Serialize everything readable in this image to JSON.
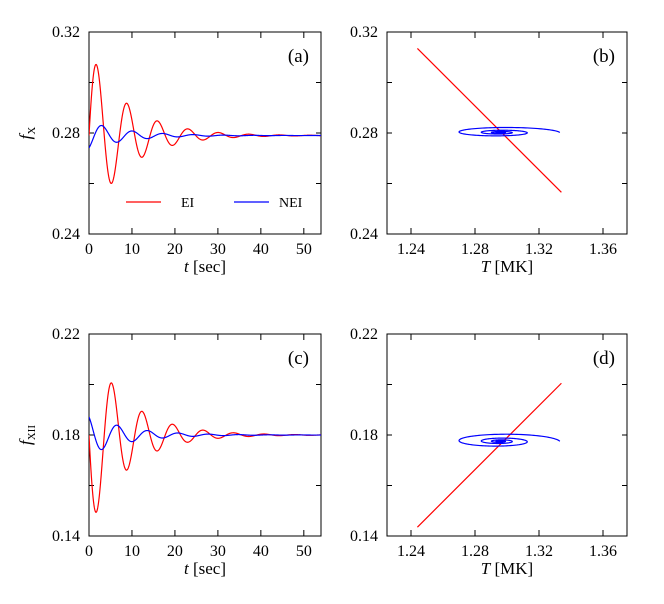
{
  "chart_data": [
    {
      "id": "a",
      "type": "line",
      "panel_label": "(a)",
      "ylabel_main": "f",
      "ylabel_sub": "X",
      "xlabel_italic": "t",
      "xlabel_rest": " [sec]",
      "xlim": [
        0,
        54
      ],
      "ylim": [
        0.24,
        0.32
      ],
      "xticks": [
        0,
        10,
        20,
        30,
        40,
        50
      ],
      "xticklabels": [
        "0",
        "10",
        "20",
        "30",
        "40",
        "50"
      ],
      "yticks": [
        0.24,
        0.28,
        0.32
      ],
      "yticklabels": [
        "0.24",
        "0.28",
        "0.32"
      ],
      "legend": {
        "location": "lower-center",
        "entries": [
          "EI",
          "NEI"
        ]
      },
      "series": [
        {
          "name": "EI",
          "color": "#ff0000",
          "kind": "time",
          "y0": 0.279,
          "amp": 0.034,
          "period": 7.1,
          "tau": 9.0,
          "phase": 0.0
        },
        {
          "name": "NEI",
          "color": "#0000ff",
          "kind": "time",
          "y0": 0.279,
          "amp": 0.0055,
          "period": 7.1,
          "tau": 9.0,
          "phase": -1.1
        }
      ]
    },
    {
      "id": "b",
      "type": "line",
      "panel_label": "(b)",
      "xlabel_italic": "T",
      "xlabel_rest": " [MK]",
      "xlim": [
        1.225,
        1.375
      ],
      "ylim": [
        0.24,
        0.32
      ],
      "xticks": [
        1.24,
        1.28,
        1.32,
        1.36
      ],
      "xticklabels": [
        "1.24",
        "1.28",
        "1.32",
        "1.36"
      ],
      "yticks": [
        0.24,
        0.28,
        0.32
      ],
      "yticklabels": [
        "0.24",
        "0.28",
        "0.32"
      ],
      "series": [
        {
          "name": "EI",
          "color": "#ff0000",
          "kind": "line",
          "x": [
            1.244,
            1.334
          ],
          "y": [
            0.3135,
            0.2565
          ]
        },
        {
          "name": "NEI",
          "color": "#0000ff",
          "kind": "spiral",
          "cx": 1.2955,
          "cy": 0.2802,
          "rx": 0.0375,
          "ry": 0.0024,
          "tau": 9.0,
          "period": 7.1
        }
      ]
    },
    {
      "id": "c",
      "type": "line",
      "panel_label": "(c)",
      "ylabel_main": "f",
      "ylabel_sub": "XII",
      "xlabel_italic": "t",
      "xlabel_rest": " [sec]",
      "xlim": [
        0,
        54
      ],
      "ylim": [
        0.14,
        0.22
      ],
      "xticks": [
        0,
        10,
        20,
        30,
        40,
        50
      ],
      "xticklabels": [
        "0",
        "10",
        "20",
        "30",
        "40",
        "50"
      ],
      "yticks": [
        0.14,
        0.18,
        0.22
      ],
      "yticklabels": [
        "0.14",
        "0.18",
        "0.22"
      ],
      "series": [
        {
          "name": "EI",
          "color": "#ff0000",
          "kind": "time",
          "y0": 0.18,
          "amp": -0.037,
          "period": 7.1,
          "tau": 9.0,
          "phase": 0.0
        },
        {
          "name": "NEI",
          "color": "#0000ff",
          "kind": "time",
          "y0": 0.18,
          "amp": -0.008,
          "period": 7.1,
          "tau": 9.0,
          "phase": -1.1
        }
      ]
    },
    {
      "id": "d",
      "type": "line",
      "panel_label": "(d)",
      "xlabel_italic": "T",
      "xlabel_rest": " [MK]",
      "xlim": [
        1.225,
        1.375
      ],
      "ylim": [
        0.14,
        0.22
      ],
      "xticks": [
        1.24,
        1.28,
        1.32,
        1.36
      ],
      "xticklabels": [
        "1.24",
        "1.28",
        "1.32",
        "1.36"
      ],
      "yticks": [
        0.14,
        0.18,
        0.22
      ],
      "yticklabels": [
        "0.14",
        "0.18",
        "0.22"
      ],
      "series": [
        {
          "name": "EI",
          "color": "#ff0000",
          "kind": "line",
          "x": [
            1.244,
            1.334
          ],
          "y": [
            0.1435,
            0.2005
          ]
        },
        {
          "name": "NEI",
          "color": "#0000ff",
          "kind": "spiral",
          "cx": 1.2955,
          "cy": 0.1775,
          "rx": 0.0375,
          "ry": 0.0034,
          "tau": 9.0,
          "period": 7.1
        }
      ]
    }
  ]
}
